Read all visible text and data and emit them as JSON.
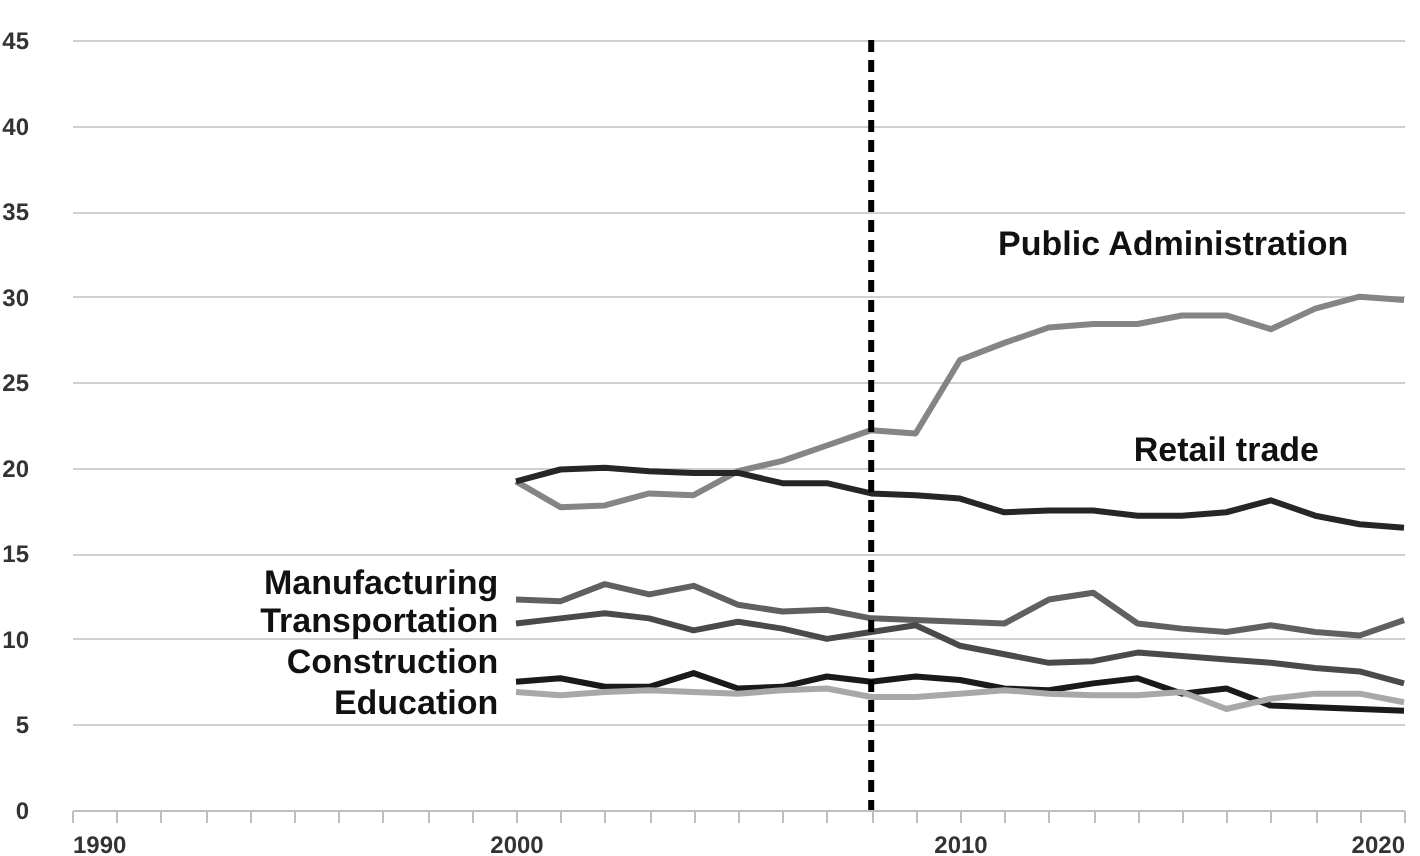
{
  "chart_data": {
    "type": "line",
    "x": [
      2000,
      2001,
      2002,
      2003,
      2004,
      2005,
      2006,
      2007,
      2008,
      2009,
      2010,
      2011,
      2012,
      2013,
      2014,
      2015,
      2016,
      2017,
      2018,
      2019,
      2020
    ],
    "series": [
      {
        "name": "Public Administration",
        "color": "#858585",
        "values": [
          19.2,
          17.7,
          17.8,
          18.5,
          18.4,
          19.8,
          20.4,
          21.3,
          22.2,
          22.0,
          26.3,
          27.3,
          28.2,
          28.4,
          28.4,
          28.9,
          28.9,
          28.1,
          29.3,
          30.0,
          29.8
        ]
      },
      {
        "name": "Retail trade",
        "color": "#262626",
        "values": [
          19.2,
          19.9,
          20.0,
          19.8,
          19.7,
          19.7,
          19.1,
          19.1,
          18.5,
          18.4,
          18.2,
          17.4,
          17.5,
          17.5,
          17.2,
          17.2,
          17.4,
          18.1,
          17.2,
          16.7,
          16.5
        ]
      },
      {
        "name": "Manufacturing",
        "color": "#606060",
        "values": [
          12.3,
          12.2,
          13.2,
          12.6,
          13.1,
          12.0,
          11.6,
          11.7,
          11.2,
          11.1,
          11.0,
          10.9,
          12.3,
          12.7,
          10.9,
          10.6,
          10.4,
          10.8,
          10.4,
          10.2,
          11.1
        ]
      },
      {
        "name": "Transportation",
        "color": "#4a4a4a",
        "values": [
          10.9,
          11.2,
          11.5,
          11.2,
          10.5,
          11.0,
          10.6,
          10.0,
          10.4,
          10.8,
          9.6,
          9.1,
          8.6,
          8.7,
          9.2,
          9.0,
          8.8,
          8.6,
          8.3,
          8.1,
          7.4
        ]
      },
      {
        "name": "Construction",
        "color": "#1a1a1a",
        "values": [
          7.5,
          7.7,
          7.2,
          7.2,
          8.0,
          7.1,
          7.2,
          7.8,
          7.5,
          7.8,
          7.6,
          7.1,
          7.0,
          7.4,
          7.7,
          6.8,
          7.1,
          6.1,
          6.0,
          5.9,
          5.8
        ]
      },
      {
        "name": "Education",
        "color": "#a8a8a8",
        "values": [
          6.9,
          6.7,
          6.9,
          7.0,
          6.9,
          6.8,
          7.0,
          7.1,
          6.6,
          6.6,
          6.8,
          7.0,
          6.8,
          6.7,
          6.7,
          6.9,
          5.9,
          6.5,
          6.8,
          6.8,
          6.3
        ]
      }
    ],
    "xlim": [
      1990,
      2020
    ],
    "xticks": [
      1990,
      {
        "value": 1991,
        "label": null
      },
      {
        "value": 1992,
        "label": null
      },
      {
        "value": 1993,
        "label": null
      },
      {
        "value": 1994,
        "label": null
      },
      {
        "value": 1995,
        "label": null
      },
      {
        "value": 1996,
        "label": null
      },
      {
        "value": 1997,
        "label": null
      },
      {
        "value": 1998,
        "label": null
      },
      {
        "value": 1999,
        "label": null
      },
      2000,
      {
        "value": 2001,
        "label": null
      },
      {
        "value": 2002,
        "label": null
      },
      {
        "value": 2003,
        "label": null
      },
      {
        "value": 2004,
        "label": null
      },
      {
        "value": 2005,
        "label": null
      },
      {
        "value": 2006,
        "label": null
      },
      {
        "value": 2007,
        "label": null
      },
      {
        "value": 2008,
        "label": null
      },
      {
        "value": 2009,
        "label": null
      },
      2010,
      {
        "value": 2011,
        "label": null
      },
      {
        "value": 2012,
        "label": null
      },
      {
        "value": 2013,
        "label": null
      },
      {
        "value": 2014,
        "label": null
      },
      {
        "value": 2015,
        "label": null
      },
      {
        "value": 2016,
        "label": null
      },
      {
        "value": 2017,
        "label": null
      },
      {
        "value": 2018,
        "label": null
      },
      {
        "value": 2019,
        "label": null
      },
      2020
    ],
    "ylim": [
      0,
      45
    ],
    "yticks": [
      0,
      5,
      10,
      15,
      20,
      25,
      30,
      35,
      40,
      45
    ],
    "grid": "y",
    "legend": false,
    "ref_lines": [
      {
        "axis": "x",
        "value": 2008,
        "color": "#000000",
        "line_style": "dashed"
      }
    ]
  }
}
